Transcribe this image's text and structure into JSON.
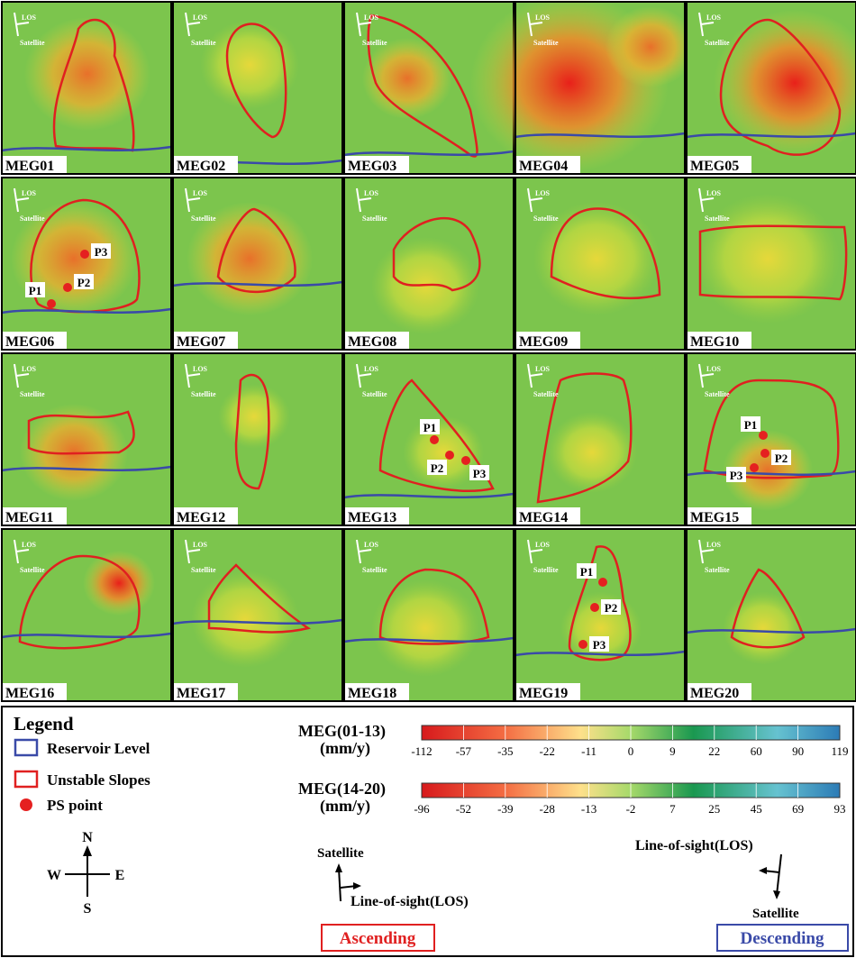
{
  "panel_arrow_labels": {
    "satellite": "Satellite",
    "los": "LOS"
  },
  "panels": [
    {
      "label": "MEG01"
    },
    {
      "label": "MEG02"
    },
    {
      "label": "MEG03"
    },
    {
      "label": "MEG04"
    },
    {
      "label": "MEG05"
    },
    {
      "label": "MEG06",
      "points": [
        "P1",
        "P2",
        "P3"
      ]
    },
    {
      "label": "MEG07"
    },
    {
      "label": "MEG08"
    },
    {
      "label": "MEG09"
    },
    {
      "label": "MEG10"
    },
    {
      "label": "MEG11"
    },
    {
      "label": "MEG12"
    },
    {
      "label": "MEG13",
      "points": [
        "P1",
        "P2",
        "P3"
      ]
    },
    {
      "label": "MEG14"
    },
    {
      "label": "MEG15",
      "points": [
        "P1",
        "P2",
        "P3"
      ]
    },
    {
      "label": "MEG16"
    },
    {
      "label": "MEG17"
    },
    {
      "label": "MEG18"
    },
    {
      "label": "MEG19",
      "points": [
        "P1",
        "P2",
        "P3"
      ]
    },
    {
      "label": "MEG20"
    }
  ],
  "legend": {
    "title": "Legend",
    "items": [
      "Reservoir Level",
      "Unstable Slopes",
      "PS point"
    ]
  },
  "colorbars": [
    {
      "title": "MEG(01-13)",
      "unit": "(mm/y)",
      "ticks": [
        -112,
        -57,
        -35,
        -22,
        -11,
        0,
        9,
        22,
        60,
        90,
        119
      ]
    },
    {
      "title": "MEG(14-20)",
      "unit": "(mm/y)",
      "ticks": [
        -96,
        -52,
        -39,
        -28,
        -13,
        -2,
        7,
        25,
        45,
        69,
        93
      ]
    }
  ],
  "compass": {
    "n": "N",
    "s": "S",
    "e": "E",
    "w": "W"
  },
  "ascending": {
    "satellite": "Satellite",
    "los": "Line-of-sight(LOS)",
    "label": "Ascending"
  },
  "descending": {
    "los": "Line-of-sight(LOS)",
    "satellite": "Satellite",
    "label": "Descending"
  }
}
